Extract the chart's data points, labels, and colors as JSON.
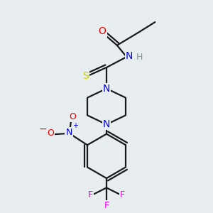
{
  "bg_color": "#e8edf0",
  "atom_colors": {
    "C": "#1a1a1a",
    "N": "#0000ee",
    "O": "#ee0000",
    "S": "#cccc00",
    "F": "#ee00ee",
    "H": "#7a9a7a"
  },
  "bond_color": "#1a1a1a",
  "bond_width": 1.6
}
